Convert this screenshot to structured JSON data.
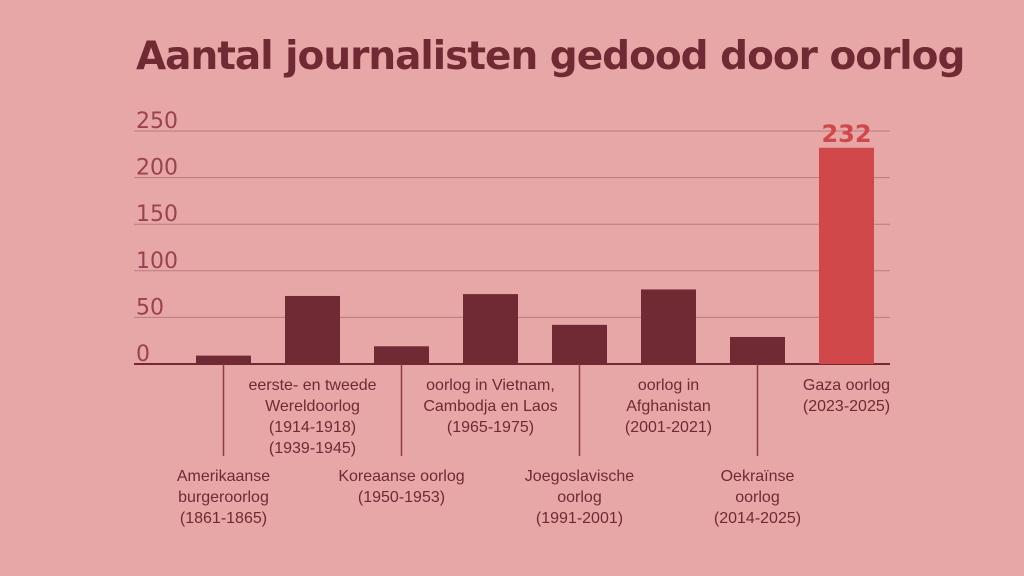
{
  "chart_data": {
    "type": "bar",
    "title": "Aantal journalisten gedood door oorlog",
    "xlabel": "",
    "ylabel": "",
    "ylim": [
      0,
      250
    ],
    "yticks": [
      0,
      50,
      100,
      150,
      200,
      250
    ],
    "grid": true,
    "categories": [
      [
        "Amerikaanse",
        "burgeroorlog",
        "(1861-1865)"
      ],
      [
        "eerste- en tweede",
        "Wereldoorlog",
        "(1914-1918)",
        "(1939-1945)"
      ],
      [
        "Koreaanse oorlog",
        "(1950-1953)"
      ],
      [
        "oorlog in Vietnam,",
        "Cambodja en Laos",
        "(1965-1975)"
      ],
      [
        "Joegoslavische",
        "oorlog",
        "(1991-2001)"
      ],
      [
        "oorlog in",
        "Afghanistan",
        "(2001-2021)"
      ],
      [
        "Oekraïnse",
        "oorlog",
        "(2014-2025)"
      ],
      [
        "Gaza oorlog",
        "(2023-2025)"
      ]
    ],
    "values": [
      9,
      73,
      19,
      75,
      42,
      80,
      29,
      232
    ],
    "data_labels": [
      "",
      "",
      "",
      "",
      "",
      "",
      "",
      "232"
    ],
    "colors": {
      "bar": "#6f2a34",
      "highlight": "#d1484b",
      "grid": "#b87b80",
      "axis": "#6f2a34",
      "leader": "#8f3a45"
    },
    "highlight_index": 7
  }
}
